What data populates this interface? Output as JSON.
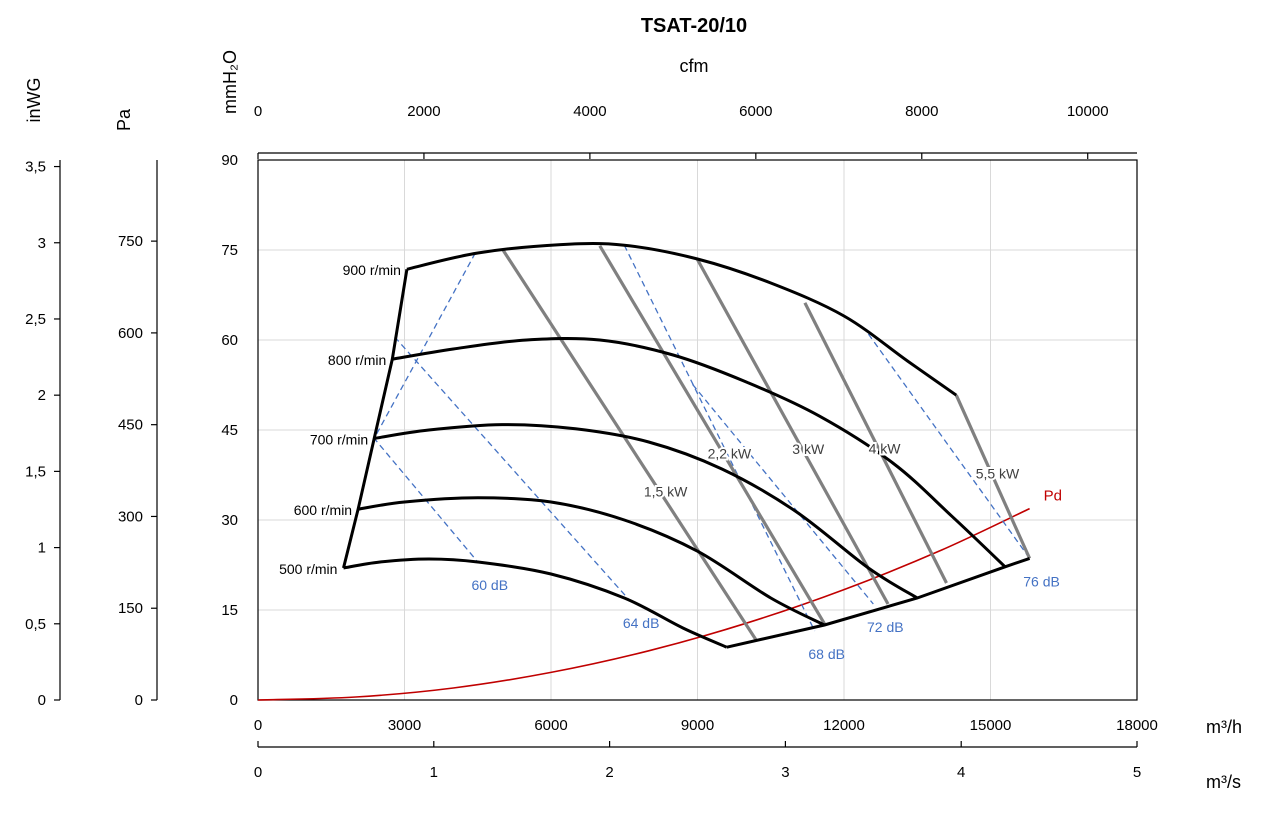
{
  "chart_data": {
    "type": "line",
    "title": "TSAT-20/10",
    "x_axes": {
      "bottom_primary": {
        "unit": "m³/h",
        "range": [
          0,
          18000
        ],
        "ticks": [
          "0",
          "3000",
          "6000",
          "9000",
          "12000",
          "15000",
          "18000"
        ]
      },
      "bottom_secondary": {
        "unit": "m³/s",
        "range": [
          0,
          5
        ],
        "ticks": [
          "0",
          "1",
          "2",
          "3",
          "4",
          "5"
        ]
      },
      "top": {
        "unit": "cfm",
        "range": [
          0,
          10594
        ],
        "ticks": [
          "0",
          "2000",
          "4000",
          "6000",
          "8000",
          "10000"
        ]
      }
    },
    "y_axes": {
      "primary": {
        "unit": "mmH₂O",
        "range": [
          0,
          90
        ],
        "ticks": [
          "0",
          "15",
          "30",
          "45",
          "60",
          "75",
          "90"
        ]
      },
      "pa": {
        "unit": "Pa",
        "range": [
          0,
          882.6
        ],
        "ticks": [
          "0",
          "150",
          "300",
          "450",
          "600",
          "750"
        ]
      },
      "inwg": {
        "unit": "inWG",
        "range": [
          0,
          3.543
        ],
        "ticks": [
          "0",
          "0,5",
          "1",
          "1,5",
          "2",
          "2,5",
          "3",
          "3,5"
        ]
      }
    },
    "grid": true,
    "speed_curves": [
      {
        "label": "500 r/min",
        "points": [
          [
            1750,
            22
          ],
          [
            2500,
            23
          ],
          [
            3500,
            23.5
          ],
          [
            4500,
            23
          ],
          [
            6000,
            21
          ],
          [
            7500,
            17
          ],
          [
            8700,
            12
          ],
          [
            9600,
            8.8
          ]
        ]
      },
      {
        "label": "600 r/min",
        "points": [
          [
            2050,
            31.8
          ],
          [
            3000,
            33
          ],
          [
            4500,
            33.7
          ],
          [
            6000,
            33
          ],
          [
            7500,
            30
          ],
          [
            9000,
            24.8
          ],
          [
            10500,
            17
          ],
          [
            11600,
            12.5
          ]
        ]
      },
      {
        "label": "700 r/min",
        "points": [
          [
            2380,
            43.6
          ],
          [
            3500,
            45
          ],
          [
            5000,
            45.9
          ],
          [
            6500,
            45.2
          ],
          [
            8000,
            43
          ],
          [
            9500,
            38.5
          ],
          [
            11000,
            31.5
          ],
          [
            12500,
            22
          ],
          [
            13500,
            17
          ]
        ]
      },
      {
        "label": "800 r/min",
        "points": [
          [
            2750,
            56.8
          ],
          [
            4000,
            58.5
          ],
          [
            5500,
            60
          ],
          [
            7000,
            60
          ],
          [
            8500,
            57.5
          ],
          [
            10000,
            53
          ],
          [
            11500,
            47.3
          ],
          [
            13000,
            39.5
          ],
          [
            14200,
            30.7
          ],
          [
            15300,
            22.2
          ]
        ]
      },
      {
        "label": "900 r/min",
        "points": [
          [
            3050,
            71.8
          ],
          [
            4500,
            74.5
          ],
          [
            6200,
            75.9
          ],
          [
            7500,
            75.8
          ],
          [
            9000,
            73.5
          ],
          [
            10500,
            69.5
          ],
          [
            12000,
            64
          ],
          [
            13300,
            56.5
          ],
          [
            14300,
            50.8
          ]
        ]
      }
    ],
    "speed_boundary_left": [
      [
        1750,
        22
      ],
      [
        2050,
        31.8
      ],
      [
        2380,
        43.6
      ],
      [
        2750,
        56.8
      ],
      [
        3050,
        71.8
      ]
    ],
    "speed_boundary_bottom": [
      [
        9600,
        8.8
      ],
      [
        11600,
        12.5
      ],
      [
        13500,
        17
      ],
      [
        15300,
        22.2
      ],
      [
        15800,
        23.6
      ]
    ],
    "power_lines": [
      {
        "label": "1,5 kW",
        "points": [
          [
            5000,
            75.2
          ],
          [
            10200,
            10
          ]
        ]
      },
      {
        "label": "2,2 kW",
        "points": [
          [
            7000,
            75.7
          ],
          [
            11600,
            12.7
          ]
        ]
      },
      {
        "label": "3 kW",
        "points": [
          [
            9000,
            73.4
          ],
          [
            12900,
            16
          ]
        ]
      },
      {
        "label": "4 kW",
        "points": [
          [
            11200,
            66.2
          ],
          [
            14100,
            19.5
          ]
        ]
      },
      {
        "label": "5,5 kW",
        "points": [
          [
            14300,
            50.8
          ],
          [
            15800,
            23.6
          ]
        ]
      }
    ],
    "noise_lines": [
      {
        "label": "60 dB",
        "points": [
          [
            4450,
            74.5
          ],
          [
            2380,
            43.6
          ],
          [
            4500,
            23
          ]
        ]
      },
      {
        "label": "64 dB",
        "points": [
          [
            2800,
            60.5
          ],
          [
            7600,
            16.7
          ]
        ]
      },
      {
        "label": "68 dB",
        "points": [
          [
            7500,
            75.8
          ],
          [
            11400,
            11.5
          ]
        ]
      },
      {
        "label": "72 dB",
        "points": [
          [
            8900,
            52.6
          ],
          [
            12600,
            16
          ]
        ]
      },
      {
        "label": "76 dB",
        "points": [
          [
            12500,
            61
          ],
          [
            15800,
            23.6
          ]
        ]
      }
    ],
    "pd_curve": {
      "label": "Pd",
      "points": [
        [
          0,
          0
        ],
        [
          2000,
          0.5
        ],
        [
          4000,
          2
        ],
        [
          6000,
          4.6
        ],
        [
          8000,
          8.2
        ],
        [
          10000,
          12.8
        ],
        [
          12000,
          18.4
        ],
        [
          14000,
          25
        ],
        [
          15800,
          31.9
        ]
      ]
    },
    "text_labels": {
      "speeds": [
        "500 r/min",
        "600 r/min",
        "700 r/min",
        "800 r/min",
        "900 r/min"
      ],
      "powers": [
        "1,5 kW",
        "2,2 kW",
        "3 kW",
        "4 kW",
        "5,5 kW"
      ],
      "noises": [
        "60 dB",
        "64 dB",
        "68 dB",
        "72 dB",
        "76 dB"
      ],
      "pd": "Pd"
    },
    "colors": {
      "speed": "#000000",
      "power": "#808080",
      "noise": "#4472C4",
      "pd": "#C00000",
      "grid": "#D9D9D9"
    }
  }
}
